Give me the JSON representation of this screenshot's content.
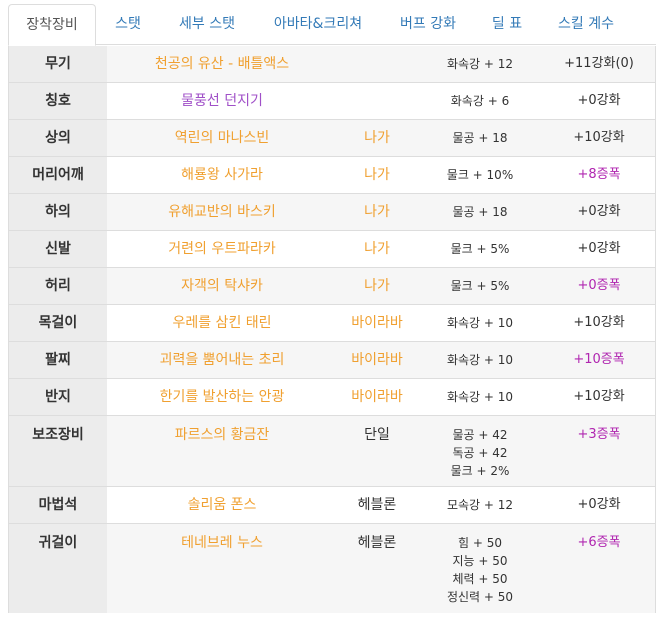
{
  "tabs": [
    {
      "label": "장착장비",
      "active": true
    },
    {
      "label": "스탯",
      "active": false
    },
    {
      "label": "세부 스탯",
      "active": false
    },
    {
      "label": "아바타&크리쳐",
      "active": false
    },
    {
      "label": "버프 강화",
      "active": false
    },
    {
      "label": "딜 표",
      "active": false
    },
    {
      "label": "스킬 계수",
      "active": false
    }
  ],
  "colors": {
    "tab_link": "#337ab7",
    "item_unique": "#f0a030",
    "item_special": "#a050c8",
    "enhance_amp": "#b026b0",
    "slot_bg": "#ececec"
  },
  "equipment": [
    {
      "slot": "무기",
      "name": "천공의 유산 - 배틀액스",
      "name_color": "orange",
      "set": "",
      "stats": [
        "화속강 + 12"
      ],
      "enhance": "+11강화(0)",
      "enhance_color": "dark"
    },
    {
      "slot": "칭호",
      "name": "물풍선 던지기",
      "name_color": "purple",
      "set": "",
      "stats": [
        "화속강 + 6"
      ],
      "enhance": "+0강화",
      "enhance_color": "dark"
    },
    {
      "slot": "상의",
      "name": "역린의 마나스빈",
      "name_color": "orange",
      "set": "나가",
      "set_color": "orange",
      "stats": [
        "물공 + 18"
      ],
      "enhance": "+10강화",
      "enhance_color": "dark"
    },
    {
      "slot": "머리어깨",
      "name": "해룡왕 사가라",
      "name_color": "orange",
      "set": "나가",
      "set_color": "orange",
      "stats": [
        "물크 + 10%"
      ],
      "enhance": "+8증폭",
      "enhance_color": "purple"
    },
    {
      "slot": "하의",
      "name": "유해교반의 바스키",
      "name_color": "orange",
      "set": "나가",
      "set_color": "orange",
      "stats": [
        "물공 + 18"
      ],
      "enhance": "+0강화",
      "enhance_color": "dark"
    },
    {
      "slot": "신발",
      "name": "거련의 우트파라카",
      "name_color": "orange",
      "set": "나가",
      "set_color": "orange",
      "stats": [
        "물크 + 5%"
      ],
      "enhance": "+0강화",
      "enhance_color": "dark"
    },
    {
      "slot": "허리",
      "name": "자객의 탁샤카",
      "name_color": "orange",
      "set": "나가",
      "set_color": "orange",
      "stats": [
        "물크 + 5%"
      ],
      "enhance": "+0증폭",
      "enhance_color": "purple"
    },
    {
      "slot": "목걸이",
      "name": "우레를 삼킨 태린",
      "name_color": "orange",
      "set": "바이라바",
      "set_color": "orange",
      "stats": [
        "화속강 + 10"
      ],
      "enhance": "+10강화",
      "enhance_color": "dark"
    },
    {
      "slot": "팔찌",
      "name": "괴력을 뿜어내는 초리",
      "name_color": "orange",
      "set": "바이라바",
      "set_color": "orange",
      "stats": [
        "화속강 + 10"
      ],
      "enhance": "+10증폭",
      "enhance_color": "purple"
    },
    {
      "slot": "반지",
      "name": "한기를 발산하는 안광",
      "name_color": "orange",
      "set": "바이라바",
      "set_color": "orange",
      "stats": [
        "화속강 + 10"
      ],
      "enhance": "+10강화",
      "enhance_color": "dark"
    },
    {
      "slot": "보조장비",
      "name": "파르스의 황금잔",
      "name_color": "orange",
      "set": "단일",
      "set_color": "dark",
      "stats": [
        "물공 + 42",
        "독공 + 42",
        "물크 + 2%"
      ],
      "enhance": "+3증폭",
      "enhance_color": "purple"
    },
    {
      "slot": "마법석",
      "name": "솔리움 폰스",
      "name_color": "orange",
      "set": "헤블론",
      "set_color": "dark",
      "stats": [
        "모속강 + 12"
      ],
      "enhance": "+0강화",
      "enhance_color": "dark"
    },
    {
      "slot": "귀걸이",
      "name": "테네브레 누스",
      "name_color": "orange",
      "set": "헤블론",
      "set_color": "dark",
      "stats": [
        "힘 + 50",
        "지능 + 50",
        "체력 + 50",
        "정신력 + 50"
      ],
      "enhance": "+6증폭",
      "enhance_color": "purple"
    }
  ]
}
